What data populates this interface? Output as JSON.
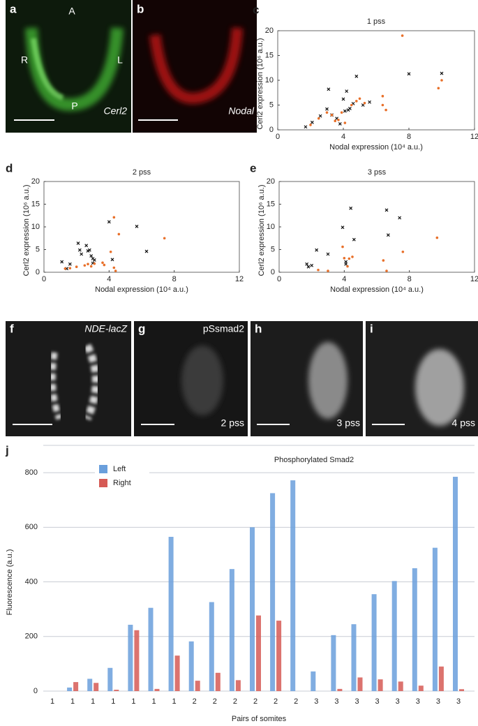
{
  "images": [
    {
      "panel": "a",
      "texts": [
        "A",
        "R",
        "L",
        "P",
        "Cerl2"
      ]
    },
    {
      "panel": "b",
      "texts": [
        "Nodal"
      ]
    },
    {
      "panel": "f",
      "texts": [
        "NDE-lacZ"
      ]
    },
    {
      "panel": "g",
      "texts": [
        "pSsmad2",
        "2 pss"
      ]
    },
    {
      "panel": "h",
      "texts": [
        "3 pss"
      ]
    },
    {
      "panel": "i",
      "texts": [
        "4 pss"
      ]
    }
  ],
  "chart_data": [
    {
      "type": "scatter",
      "panel": "c",
      "title": "1 pss",
      "xlabel": "Nodal expression (10⁴ a.u.)",
      "ylabel": "Cerl2 expression (10⁶ a.u.)",
      "xlim": [
        0,
        12
      ],
      "xticks": [
        0,
        4,
        8,
        12
      ],
      "ylim": [
        0,
        20
      ],
      "yticks": [
        0,
        5,
        10,
        15,
        20
      ],
      "series": [
        {
          "color": "#111111",
          "marker": "x",
          "x": [
            1.7,
            2.1,
            2.6,
            3.0,
            3.1,
            3.3,
            3.6,
            3.8,
            4.0,
            4.1,
            4.2,
            4.3,
            4.4,
            4.6,
            4.8,
            5.2,
            5.6,
            8.0,
            10.0
          ],
          "values": [
            0.6,
            1.5,
            2.8,
            4.2,
            8.2,
            3.0,
            2.3,
            1.2,
            6.2,
            3.8,
            7.8,
            4.0,
            4.3,
            5.3,
            10.8,
            5.0,
            5.6,
            11.3,
            11.4
          ]
        },
        {
          "color": "#e8702a",
          "marker": "o",
          "x": [
            2.0,
            2.5,
            3.0,
            3.3,
            3.5,
            3.7,
            3.9,
            4.1,
            4.5,
            4.8,
            5.0,
            5.3,
            6.4,
            6.6,
            6.4,
            7.6,
            9.8,
            10.0
          ],
          "values": [
            1.0,
            2.3,
            3.5,
            3.0,
            1.8,
            2.0,
            3.5,
            1.4,
            5.0,
            5.8,
            6.3,
            5.4,
            6.8,
            4.0,
            5.0,
            19.0,
            8.4,
            10.0
          ]
        }
      ]
    },
    {
      "type": "scatter",
      "panel": "d",
      "title": "2 pss",
      "xlabel": "Nodal expression (10⁴ a.u.)",
      "ylabel": "Cerl2 expression (10⁶ a.u.)",
      "xlim": [
        0,
        12
      ],
      "xticks": [
        0,
        4,
        8,
        12
      ],
      "ylim": [
        0,
        20
      ],
      "yticks": [
        0,
        5,
        10,
        15,
        20
      ],
      "series": [
        {
          "color": "#111111",
          "marker": "x",
          "x": [
            1.1,
            1.4,
            1.6,
            2.1,
            2.2,
            2.3,
            2.6,
            2.7,
            2.8,
            2.9,
            3.0,
            3.1,
            3.0,
            4.0,
            4.2,
            5.7,
            6.3
          ],
          "values": [
            2.3,
            0.8,
            1.8,
            6.4,
            4.9,
            4.0,
            5.9,
            4.7,
            4.9,
            3.6,
            3.0,
            2.7,
            2.0,
            11.1,
            2.8,
            10.1,
            4.6
          ]
        },
        {
          "color": "#e8702a",
          "marker": "o",
          "x": [
            1.3,
            1.6,
            2.0,
            2.5,
            2.7,
            2.9,
            3.1,
            3.6,
            3.7,
            4.1,
            4.3,
            4.3,
            4.4,
            4.6,
            7.4
          ],
          "values": [
            0.8,
            0.9,
            1.2,
            1.5,
            1.8,
            1.3,
            1.9,
            2.1,
            1.6,
            4.5,
            12.1,
            1.0,
            0.3,
            8.4,
            7.5
          ]
        }
      ]
    },
    {
      "type": "scatter",
      "panel": "e",
      "title": "3 pss",
      "xlabel": "Nodal expression (10⁴ a.u.)",
      "ylabel": "Cerl2 expression (10⁶ a.u.)",
      "xlim": [
        0,
        12
      ],
      "xticks": [
        0,
        4,
        8,
        12
      ],
      "ylim": [
        0,
        20
      ],
      "yticks": [
        0,
        5,
        10,
        15,
        20
      ],
      "series": [
        {
          "color": "#111111",
          "marker": "x",
          "x": [
            1.7,
            1.8,
            2.0,
            2.3,
            3.0,
            3.9,
            4.1,
            4.1,
            4.4,
            4.6,
            6.6,
            6.7,
            7.4
          ],
          "values": [
            1.8,
            1.2,
            1.5,
            4.9,
            4.0,
            9.9,
            1.8,
            2.3,
            14.1,
            7.2,
            13.7,
            8.2,
            12.0
          ]
        },
        {
          "color": "#e8702a",
          "marker": "o",
          "x": [
            2.4,
            3.0,
            3.9,
            4.0,
            4.2,
            4.3,
            4.5,
            6.4,
            6.6,
            7.6,
            9.7
          ],
          "values": [
            0.5,
            0.3,
            5.6,
            3.1,
            1.3,
            3.0,
            3.4,
            2.6,
            0.3,
            4.5,
            7.6
          ]
        }
      ]
    },
    {
      "type": "bar",
      "panel": "j",
      "title": "Phosphorylated Smad2",
      "xlabel": "Pairs of somites",
      "ylabel": "Fluorescence (a.u.)",
      "categories": [
        "1",
        "1",
        "1",
        "1",
        "1",
        "1",
        "1",
        "2",
        "2",
        "2",
        "2",
        "2",
        "2",
        "3",
        "3",
        "3",
        "3",
        "3",
        "3",
        "3",
        "3"
      ],
      "ylim": [
        0,
        900
      ],
      "yticks": [
        0,
        200,
        400,
        600,
        800
      ],
      "grid": true,
      "legend": "upper-left",
      "series": [
        {
          "name": "Left",
          "color": "#6a9fdc",
          "values": [
            0,
            13,
            45,
            85,
            243,
            305,
            565,
            182,
            326,
            447,
            600,
            725,
            772,
            72,
            205,
            245,
            355,
            403,
            450,
            525,
            785
          ]
        },
        {
          "name": "Right",
          "color": "#d65a55",
          "values": [
            0,
            33,
            30,
            5,
            223,
            8,
            130,
            38,
            67,
            40,
            277,
            258,
            0,
            0,
            8,
            50,
            43,
            35,
            20,
            90,
            7
          ]
        }
      ]
    }
  ]
}
